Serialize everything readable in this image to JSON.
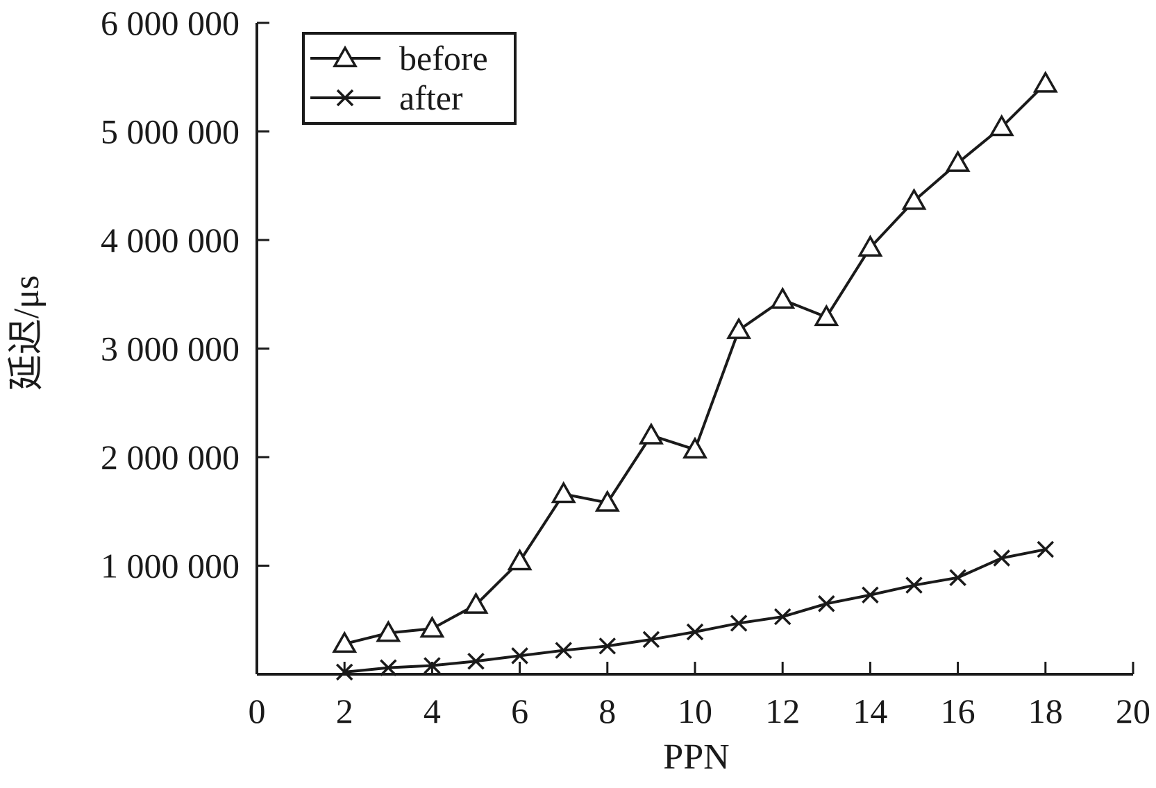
{
  "chart_data": {
    "type": "line",
    "title": "",
    "xlabel": "PPN",
    "ylabel": "延迟/μs",
    "xlim": [
      0,
      20
    ],
    "ylim": [
      0,
      6000000
    ],
    "x_ticks": [
      0,
      2,
      4,
      6,
      8,
      10,
      12,
      14,
      16,
      18,
      20
    ],
    "x_tick_labels": [
      "0",
      "2",
      "4",
      "6",
      "8",
      "10",
      "12",
      "14",
      "16",
      "18",
      "20"
    ],
    "y_ticks": [
      1000000,
      2000000,
      3000000,
      4000000,
      5000000,
      6000000
    ],
    "y_tick_labels": [
      "1 000 000",
      "2 000 000",
      "3 000 000",
      "4 000 000",
      "5 000 000",
      "6 000 000"
    ],
    "grid": false,
    "legend_position": "top-left",
    "x": [
      2,
      3,
      4,
      5,
      6,
      7,
      8,
      9,
      10,
      11,
      12,
      13,
      14,
      15,
      16,
      17,
      18
    ],
    "series": [
      {
        "name": "before",
        "marker": "triangle",
        "color": "#1a1a1a",
        "values": [
          280000,
          380000,
          420000,
          640000,
          1040000,
          1660000,
          1580000,
          2200000,
          2070000,
          3170000,
          3450000,
          3290000,
          3930000,
          4360000,
          4710000,
          5040000,
          5440000
        ]
      },
      {
        "name": "after",
        "marker": "x",
        "color": "#1a1a1a",
        "values": [
          20000,
          60000,
          80000,
          120000,
          170000,
          220000,
          260000,
          320000,
          390000,
          470000,
          530000,
          650000,
          730000,
          820000,
          890000,
          1070000,
          1150000
        ]
      }
    ]
  }
}
